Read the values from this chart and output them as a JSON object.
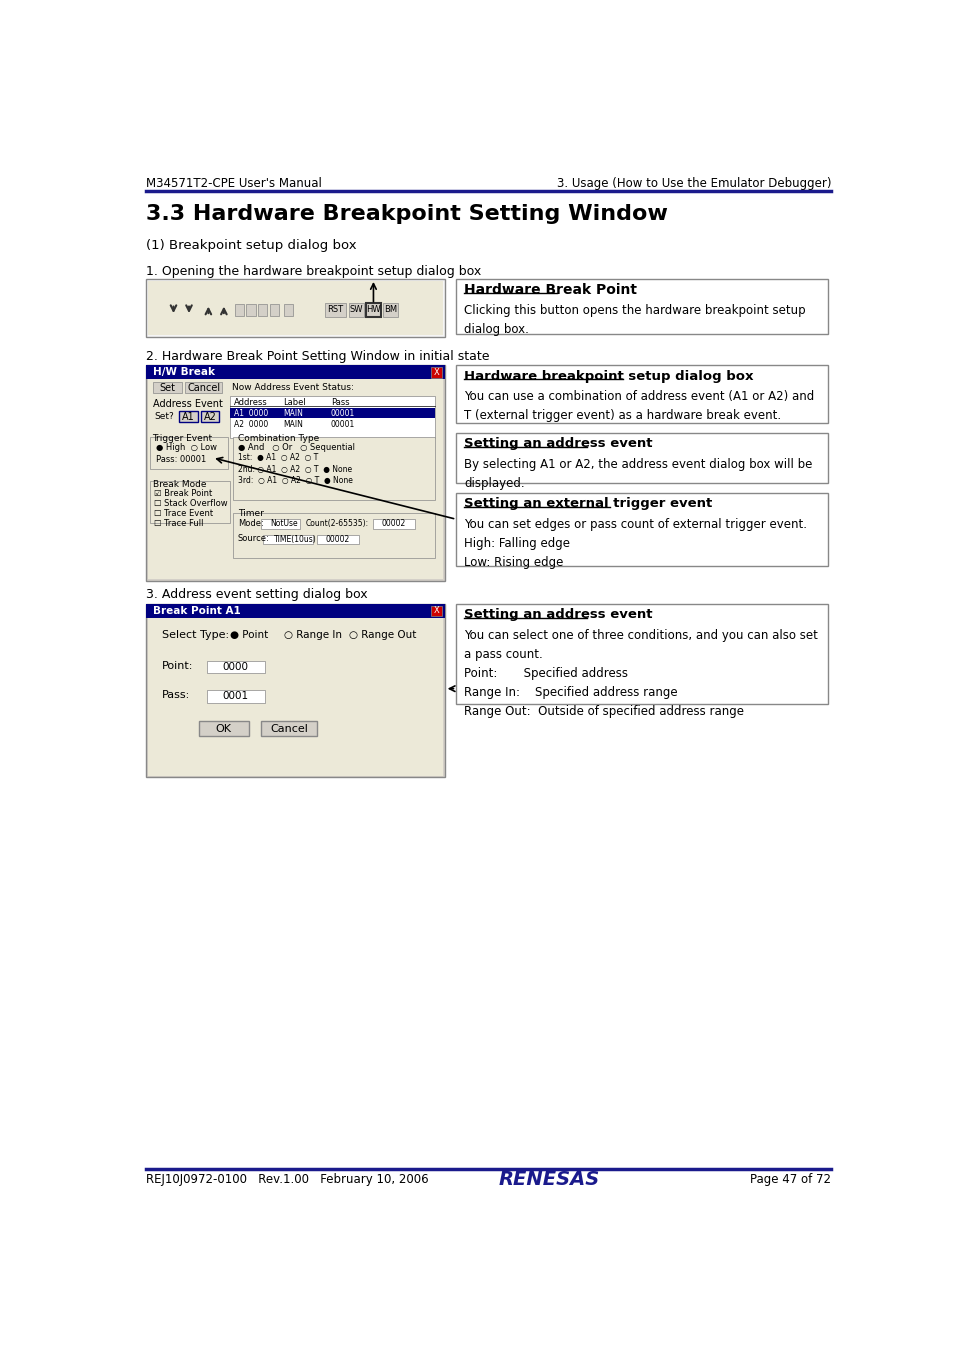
{
  "page_bg": "#ffffff",
  "header_text_left": "M34571T2-CPE User's Manual",
  "header_text_right": "3. Usage (How to Use the Emulator Debugger)",
  "header_line_color": "#1a1a8c",
  "footer_text_left": "REJ10J0972-0100   Rev.1.00   February 10, 2006",
  "footer_text_right": "Page 47 of 72",
  "footer_renesas": "RENESAS",
  "footer_line_color": "#1a1a8c",
  "section_title": "3.3 Hardware Breakpoint Setting Window",
  "sub_title1": "(1) Breakpoint setup dialog box",
  "label1": "1. Opening the hardware breakpoint setup dialog box",
  "label2": "2. Hardware Break Point Setting Window in initial state",
  "label3": "3. Address event setting dialog box",
  "box1_title": "Hardware Break Point",
  "box1_text": "Clicking this button opens the hardware breakpoint setup\ndialog box.",
  "box2_title": "Hardware breakpoint setup dialog box",
  "box2_text": "You can use a combination of address event (A1 or A2) and\nT (external trigger event) as a hardware break event.",
  "box3_title": "Setting an address event",
  "box3_text": "By selecting A1 or A2, the address event dialog box will be\ndisplayed.",
  "box4_title": "Setting an external trigger event",
  "box4_text": "You can set edges or pass count of external trigger event.\nHigh: Falling edge\nLow: Rising edge",
  "box5_title": "Setting an address event",
  "box5_text": "You can select one of three conditions, and you can also set\na pass count.\nPoint:       Specified address\nRange In:    Specified address range\nRange Out:  Outside of specified address range",
  "dark_blue": "#1a1a8c",
  "text_color": "#000000",
  "toolbar_bg": "#d4d0c8",
  "dialog_blue": "#000080",
  "dialog_title_bg": "#000080",
  "dialog_title_text": "#ffffff"
}
